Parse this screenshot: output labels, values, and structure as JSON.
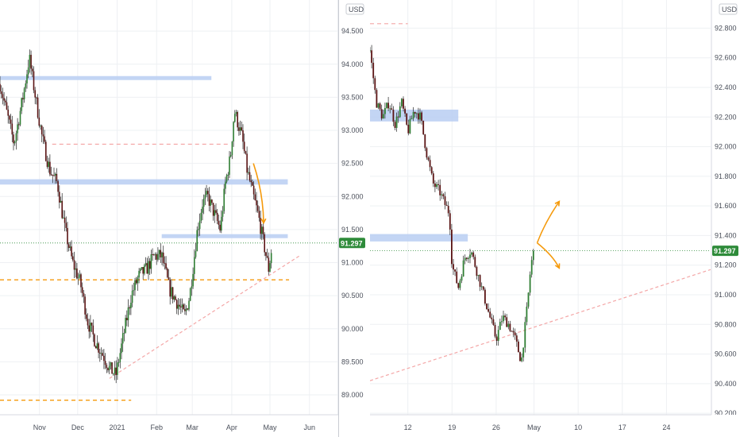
{
  "currency_label": "USD",
  "chart_data": [
    {
      "type": "candlestick",
      "panel": "left",
      "currency": "USD",
      "last_price": "91.297",
      "last_price_value": 91.297,
      "y_ticks": [
        "94.500",
        "94.000",
        "93.500",
        "93.000",
        "92.500",
        "92.000",
        "91.500",
        "91.000",
        "90.500",
        "90.000",
        "89.500",
        "89.000"
      ],
      "y_tick_values": [
        94.5,
        94.0,
        93.5,
        93.0,
        92.5,
        92.0,
        91.5,
        91.0,
        90.5,
        90.0,
        89.5,
        89.0
      ],
      "ylim": [
        88.7,
        94.97
      ],
      "x_ticks": [
        "Nov",
        "Dec",
        "2021",
        "Feb",
        "Mar",
        "Apr",
        "May",
        "Jun"
      ],
      "x_tick_positions": [
        0,
        30,
        61,
        92,
        120,
        151,
        181,
        212
      ],
      "xlim": [
        -31,
        234
      ],
      "close_path": [
        [
          -31,
          93.7
        ],
        [
          -20,
          92.8
        ],
        [
          -13,
          93.5
        ],
        [
          -8,
          94.1
        ],
        [
          -4,
          93.6
        ],
        [
          2,
          92.9
        ],
        [
          8,
          92.4
        ],
        [
          14,
          92.2
        ],
        [
          20,
          91.5
        ],
        [
          26,
          91.0
        ],
        [
          32,
          90.7
        ],
        [
          38,
          90.1
        ],
        [
          44,
          89.8
        ],
        [
          50,
          89.6
        ],
        [
          55,
          89.4
        ],
        [
          60,
          89.3
        ],
        [
          66,
          89.9
        ],
        [
          72,
          90.5
        ],
        [
          78,
          90.8
        ],
        [
          84,
          90.9
        ],
        [
          90,
          91.1
        ],
        [
          96,
          91.1
        ],
        [
          102,
          90.6
        ],
        [
          108,
          90.4
        ],
        [
          114,
          90.2
        ],
        [
          118,
          90.5
        ],
        [
          124,
          91.5
        ],
        [
          128,
          91.9
        ],
        [
          132,
          92.0
        ],
        [
          138,
          91.7
        ],
        [
          142,
          91.5
        ],
        [
          146,
          92.2
        ],
        [
          150,
          92.6
        ],
        [
          153,
          93.3
        ],
        [
          156,
          93.1
        ],
        [
          159,
          92.9
        ],
        [
          163,
          92.4
        ],
        [
          168,
          92.0
        ],
        [
          172,
          91.7
        ],
        [
          176,
          91.3
        ],
        [
          180,
          90.9
        ],
        [
          183,
          91.3
        ]
      ],
      "zones": [
        {
          "label": "resistance zone 1",
          "x": [
            -31,
            135
          ],
          "y": [
            93.76,
            93.82
          ]
        },
        {
          "label": "resistance zone 2",
          "x": [
            -31,
            195
          ],
          "y": [
            92.18,
            92.26
          ]
        },
        {
          "label": "resistance zone 3",
          "x": [
            96,
            195
          ],
          "y": [
            91.39,
            91.43
          ]
        }
      ],
      "levels": [
        {
          "label": "dashed resistance",
          "y": 92.79,
          "x": [
            10,
            150
          ],
          "style": "red-dashed"
        },
        {
          "label": "orange support",
          "y": 90.74,
          "x": [
            -31,
            196
          ],
          "style": "orange-dashed"
        },
        {
          "label": "orange low",
          "y": 88.92,
          "x": [
            -31,
            72
          ],
          "style": "orange-dashed"
        }
      ],
      "trendline": {
        "x": [
          55,
          204
        ],
        "y": [
          89.25,
          91.1
        ]
      },
      "arrows": [
        {
          "label": "down arrow",
          "from": [
            168,
            92.5
          ],
          "to": [
            176,
            91.6
          ]
        }
      ]
    },
    {
      "type": "candlestick",
      "panel": "right",
      "currency": "USD",
      "last_price": "91.297",
      "last_price_value": 91.297,
      "y_ticks": [
        "92.800",
        "92.600",
        "92.400",
        "92.200",
        "92.000",
        "91.800",
        "91.600",
        "91.400",
        "91.200",
        "91.000",
        "90.800",
        "90.600",
        "90.400",
        "90.200"
      ],
      "y_tick_values": [
        92.8,
        92.6,
        92.4,
        92.2,
        92.0,
        91.8,
        91.6,
        91.4,
        91.2,
        91.0,
        90.8,
        90.6,
        90.4,
        90.2
      ],
      "ylim": [
        90.19,
        92.99
      ],
      "x_ticks": [
        "12",
        "19",
        "26",
        "May",
        "10",
        "17",
        "24"
      ],
      "x_tick_positions": [
        12,
        19,
        26,
        32,
        39,
        46,
        53
      ],
      "xlim": [
        6,
        60
      ],
      "close_path": [
        [
          6,
          92.65
        ],
        [
          7,
          92.3
        ],
        [
          8,
          92.2
        ],
        [
          9,
          92.3
        ],
        [
          10,
          92.15
        ],
        [
          11,
          92.3
        ],
        [
          12,
          92.1
        ],
        [
          13,
          92.25
        ],
        [
          14,
          92.2
        ],
        [
          15,
          91.95
        ],
        [
          16,
          91.75
        ],
        [
          17,
          91.7
        ],
        [
          18,
          91.6
        ],
        [
          18.6,
          91.55
        ],
        [
          19,
          91.2
        ],
        [
          20,
          91.05
        ],
        [
          21,
          91.25
        ],
        [
          22,
          91.3
        ],
        [
          23,
          91.15
        ],
        [
          24,
          91.0
        ],
        [
          25,
          90.85
        ],
        [
          26,
          90.7
        ],
        [
          27,
          90.85
        ],
        [
          28,
          90.8
        ],
        [
          29,
          90.7
        ],
        [
          30,
          90.55
        ],
        [
          31,
          90.95
        ],
        [
          31.5,
          91.2
        ],
        [
          32,
          91.3
        ]
      ],
      "zones": [
        {
          "label": "resistance zone 1",
          "x": [
            6,
            20
          ],
          "y": [
            92.17,
            92.25
          ]
        },
        {
          "label": "resistance zone 2",
          "x": [
            6,
            21.5
          ],
          "y": [
            91.36,
            91.41
          ]
        }
      ],
      "levels": [
        {
          "label": "dashed high",
          "y": 92.83,
          "x": [
            6,
            12
          ],
          "style": "red-dashed"
        }
      ],
      "trendline": {
        "x": [
          6,
          60
        ],
        "y": [
          90.42,
          91.17
        ]
      },
      "arrows": [
        {
          "label": "up arrow",
          "from": [
            32.5,
            91.35
          ],
          "to": [
            36,
            91.63
          ]
        },
        {
          "label": "down arrow",
          "from": [
            32.5,
            91.35
          ],
          "to": [
            36,
            91.18
          ]
        }
      ]
    }
  ]
}
